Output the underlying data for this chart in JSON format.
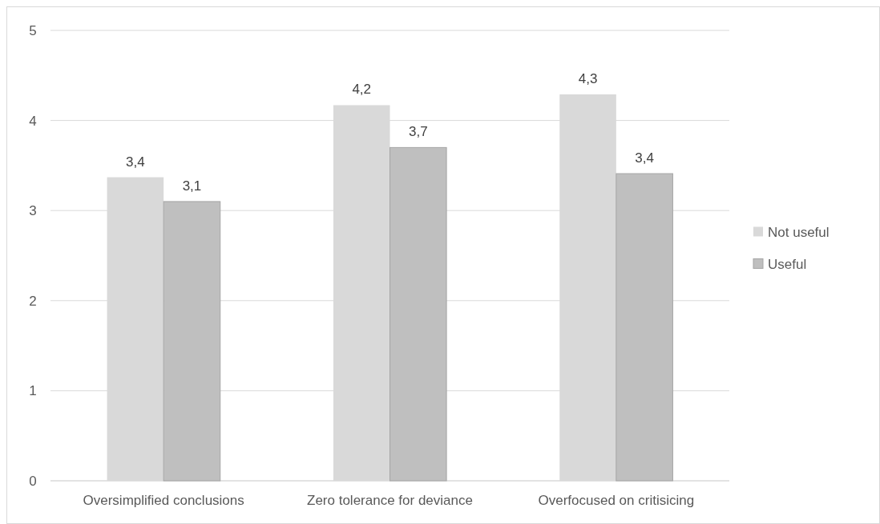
{
  "chart_data": {
    "type": "bar",
    "categories": [
      "Oversimplified conclusions",
      "Zero tolerance for deviance",
      "Overfocused on critisicing"
    ],
    "series": [
      {
        "name": "Not useful",
        "color": "#d9d9d9",
        "values": [
          3.37,
          4.17,
          4.29
        ],
        "value_labels": [
          "3,4",
          "4,2",
          "4,3"
        ]
      },
      {
        "name": "Useful",
        "color": "#bfbfbf",
        "values": [
          3.1,
          3.7,
          3.41
        ],
        "value_labels": [
          "3,1",
          "3,7",
          "3,4"
        ]
      }
    ],
    "ylim": [
      0,
      5
    ],
    "yticks": [
      0,
      1,
      2,
      3,
      4,
      5
    ],
    "grid": "y",
    "legend": "right"
  }
}
